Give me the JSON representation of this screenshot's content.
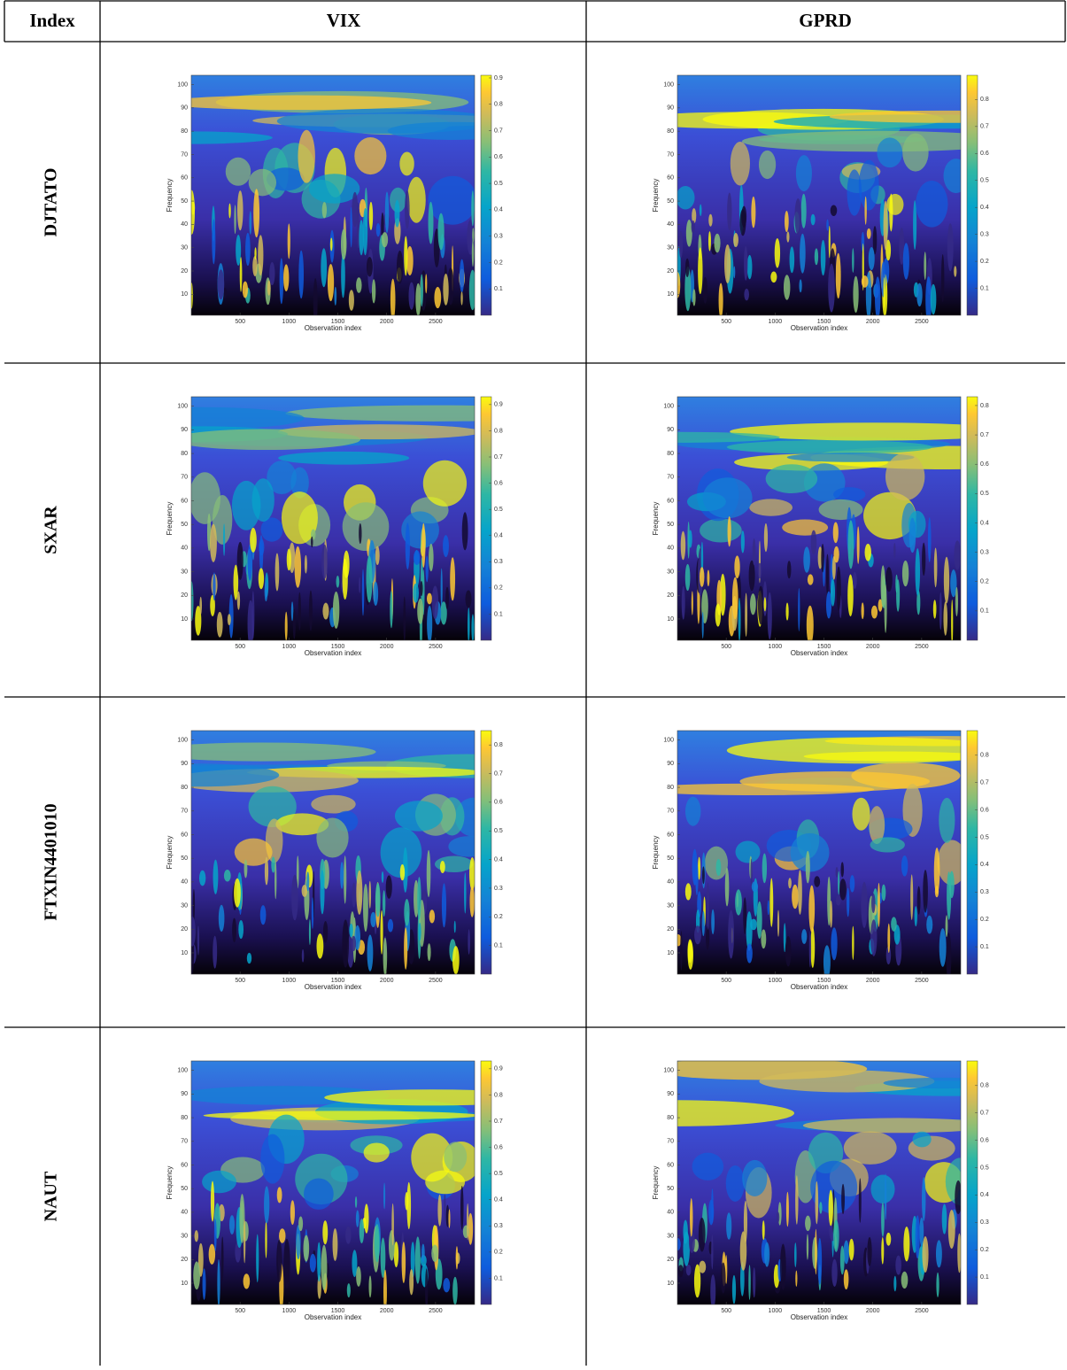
{
  "table": {
    "header": [
      "Index",
      "VIX",
      "GPRD"
    ],
    "rows": [
      {
        "label": "DJTATO",
        "plots": [
          {
            "x_label": "Observation index",
            "y_label": "Frequency",
            "xlim": [
              0,
              2900
            ],
            "ylim": [
              1,
              104
            ],
            "xticks": [
              500,
              1000,
              1500,
              2000,
              2500
            ],
            "yticks": [
              10,
              20,
              30,
              40,
              50,
              60,
              70,
              80,
              90,
              100
            ],
            "clim": [
              0,
              0.91
            ],
            "cticks": [
              0.1,
              0.2,
              0.3,
              0.4,
              0.5,
              0.6,
              0.7,
              0.8,
              0.9
            ]
          },
          {
            "x_label": "Observation index",
            "y_label": "Frequency",
            "xlim": [
              0,
              2900
            ],
            "ylim": [
              1,
              104
            ],
            "xticks": [
              500,
              1000,
              1500,
              2000,
              2500
            ],
            "yticks": [
              10,
              20,
              30,
              40,
              50,
              60,
              70,
              80,
              90,
              100
            ],
            "clim": [
              0,
              0.89
            ],
            "cticks": [
              0.1,
              0.2,
              0.3,
              0.4,
              0.5,
              0.6,
              0.7,
              0.8
            ]
          }
        ]
      },
      {
        "label": "SXAR",
        "plots": [
          {
            "x_label": "Observation index",
            "y_label": "Frequency",
            "xlim": [
              0,
              2900
            ],
            "ylim": [
              1,
              104
            ],
            "xticks": [
              500,
              1000,
              1500,
              2000,
              2500
            ],
            "yticks": [
              10,
              20,
              30,
              40,
              50,
              60,
              70,
              80,
              90,
              100
            ],
            "clim": [
              0,
              0.93
            ],
            "cticks": [
              0.1,
              0.2,
              0.3,
              0.4,
              0.5,
              0.6,
              0.7,
              0.8,
              0.9
            ]
          },
          {
            "x_label": "Observation index",
            "y_label": "Frequency",
            "xlim": [
              0,
              2900
            ],
            "ylim": [
              1,
              104
            ],
            "xticks": [
              500,
              1000,
              1500,
              2000,
              2500
            ],
            "yticks": [
              10,
              20,
              30,
              40,
              50,
              60,
              70,
              80,
              90,
              100
            ],
            "clim": [
              0,
              0.83
            ],
            "cticks": [
              0.1,
              0.2,
              0.3,
              0.4,
              0.5,
              0.6,
              0.7,
              0.8
            ]
          }
        ]
      },
      {
        "label": "FTXIN4401010",
        "plots": [
          {
            "x_label": "Observation index",
            "y_label": "Frequency",
            "xlim": [
              0,
              2900
            ],
            "ylim": [
              1,
              104
            ],
            "xticks": [
              500,
              1000,
              1500,
              2000,
              2500
            ],
            "yticks": [
              10,
              20,
              30,
              40,
              50,
              60,
              70,
              80,
              90,
              100
            ],
            "clim": [
              0,
              0.85
            ],
            "cticks": [
              0.1,
              0.2,
              0.3,
              0.4,
              0.5,
              0.6,
              0.7,
              0.8
            ]
          },
          {
            "x_label": "Observation index",
            "y_label": "Frequency",
            "xlim": [
              0,
              2900
            ],
            "ylim": [
              1,
              104
            ],
            "xticks": [
              500,
              1000,
              1500,
              2000,
              2500
            ],
            "yticks": [
              10,
              20,
              30,
              40,
              50,
              60,
              70,
              80,
              90,
              100
            ],
            "clim": [
              0,
              0.89
            ],
            "cticks": [
              0.1,
              0.2,
              0.3,
              0.4,
              0.5,
              0.6,
              0.7,
              0.8
            ]
          }
        ]
      },
      {
        "label": "NAUT",
        "plots": [
          {
            "x_label": "Observation index",
            "y_label": "Frequency",
            "xlim": [
              0,
              2900
            ],
            "ylim": [
              1,
              104
            ],
            "xticks": [
              500,
              1000,
              1500,
              2000,
              2500
            ],
            "yticks": [
              10,
              20,
              30,
              40,
              50,
              60,
              70,
              80,
              90,
              100
            ],
            "clim": [
              0,
              0.93
            ],
            "cticks": [
              0.1,
              0.2,
              0.3,
              0.4,
              0.5,
              0.6,
              0.7,
              0.8,
              0.9
            ]
          },
          {
            "x_label": "Observation index",
            "y_label": "Frequency",
            "xlim": [
              0,
              2900
            ],
            "ylim": [
              1,
              104
            ],
            "xticks": [
              500,
              1000,
              1500,
              2000,
              2500
            ],
            "yticks": [
              10,
              20,
              30,
              40,
              50,
              60,
              70,
              80,
              90,
              100
            ],
            "clim": [
              0,
              0.89
            ],
            "cticks": [
              0.1,
              0.2,
              0.3,
              0.4,
              0.5,
              0.6,
              0.7,
              0.8
            ]
          }
        ]
      }
    ]
  }
}
